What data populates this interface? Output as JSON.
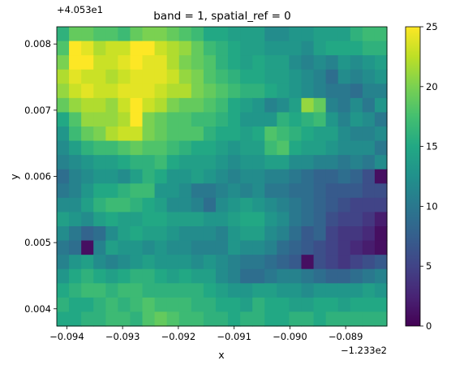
{
  "chart_data": {
    "type": "heatmap",
    "title": "band = 1, spatial_ref = 0",
    "xlabel": "x",
    "ylabel": "y",
    "x_offset_label": "−1.233e2",
    "y_offset_label": "+4.053e1",
    "xlim": [
      -0.09418,
      -0.08826
    ],
    "ylim": [
      0.00374,
      0.00826
    ],
    "x_ticks": [
      -0.094,
      -0.093,
      -0.092,
      -0.091,
      -0.09,
      -0.089
    ],
    "x_tick_labels": [
      "−0.094",
      "−0.093",
      "−0.092",
      "−0.091",
      "−0.090",
      "−0.089"
    ],
    "y_ticks": [
      0.004,
      0.005,
      0.006,
      0.007,
      0.008
    ],
    "y_tick_labels": [
      "0.004",
      "0.005",
      "0.006",
      "0.007",
      "0.008"
    ],
    "colorbar": {
      "min": 0,
      "max": 25,
      "ticks": [
        0,
        5,
        10,
        15,
        20,
        25
      ],
      "tick_labels": [
        "0",
        "5",
        "10",
        "15",
        "20",
        "25"
      ],
      "colormap": "viridis"
    },
    "grid": {
      "rows": 21,
      "cols": 27,
      "values": [
        [
          16,
          19,
          19,
          18,
          18,
          17,
          19,
          20,
          20,
          19,
          18,
          17,
          15,
          15,
          14,
          14,
          14,
          12,
          12,
          13,
          13,
          14,
          14,
          14,
          16,
          17,
          17
        ],
        [
          18,
          25,
          24,
          22,
          23,
          23,
          25,
          25,
          23,
          22,
          21,
          19,
          17,
          16,
          15,
          14,
          14,
          13,
          13,
          13,
          12,
          14,
          15,
          15,
          15,
          16,
          16
        ],
        [
          20,
          25,
          25,
          23,
          23,
          24,
          25,
          24,
          24,
          22,
          20,
          19,
          18,
          16,
          15,
          14,
          15,
          14,
          14,
          12,
          11,
          12,
          11,
          13,
          12,
          13,
          14
        ],
        [
          22,
          24,
          23,
          23,
          22,
          23,
          24,
          24,
          24,
          23,
          21,
          20,
          18,
          17,
          16,
          15,
          15,
          14,
          14,
          13,
          12,
          11,
          9,
          12,
          11,
          12,
          13
        ],
        [
          21,
          23,
          24,
          23,
          23,
          24,
          24,
          24,
          23,
          22,
          22,
          20,
          19,
          18,
          17,
          16,
          16,
          15,
          14,
          13,
          12,
          11,
          10,
          10,
          9,
          11,
          11
        ],
        [
          19,
          21,
          22,
          22,
          21,
          23,
          25,
          23,
          22,
          20,
          19,
          19,
          18,
          17,
          15,
          14,
          13,
          11,
          12,
          14,
          21,
          19,
          11,
          10,
          12,
          10,
          13
        ],
        [
          15,
          18,
          21,
          21,
          21,
          22,
          25,
          20,
          19,
          18,
          18,
          17,
          17,
          16,
          15,
          13,
          13,
          13,
          16,
          15,
          16,
          17,
          13,
          11,
          13,
          12,
          10
        ],
        [
          13,
          17,
          19,
          20,
          22,
          23,
          23,
          20,
          19,
          18,
          18,
          18,
          16,
          15,
          15,
          14,
          15,
          18,
          17,
          16,
          15,
          14,
          14,
          12,
          11,
          11,
          12
        ],
        [
          12,
          14,
          16,
          17,
          17,
          18,
          19,
          18,
          18,
          17,
          16,
          15,
          15,
          14,
          13,
          14,
          14,
          17,
          18,
          15,
          14,
          14,
          13,
          12,
          12,
          12,
          10
        ],
        [
          11,
          12,
          13,
          14,
          14,
          15,
          16,
          16,
          17,
          15,
          14,
          14,
          14,
          13,
          12,
          13,
          13,
          14,
          14,
          12,
          12,
          11,
          11,
          10,
          11,
          10,
          12
        ],
        [
          9,
          11,
          12,
          13,
          13,
          12,
          14,
          16,
          15,
          13,
          13,
          14,
          13,
          12,
          11,
          12,
          12,
          11,
          11,
          10,
          9,
          8,
          8,
          9,
          8,
          6,
          1
        ],
        [
          10,
          11,
          13,
          15,
          15,
          16,
          17,
          17,
          13,
          13,
          12,
          10,
          10,
          11,
          12,
          11,
          12,
          10,
          10,
          9,
          9,
          8,
          7,
          7,
          7,
          6,
          6
        ],
        [
          12,
          12,
          14,
          16,
          17,
          17,
          16,
          15,
          14,
          12,
          12,
          11,
          9,
          12,
          13,
          14,
          13,
          12,
          11,
          10,
          9,
          8,
          7,
          6,
          5,
          5,
          5
        ],
        [
          14,
          13,
          12,
          14,
          15,
          14,
          14,
          15,
          15,
          14,
          14,
          14,
          13,
          13,
          14,
          15,
          15,
          13,
          12,
          10,
          9,
          8,
          6,
          5,
          5,
          4,
          2
        ],
        [
          12,
          10,
          8,
          9,
          12,
          14,
          15,
          14,
          14,
          13,
          12,
          12,
          12,
          11,
          13,
          14,
          14,
          12,
          11,
          9,
          7,
          8,
          5,
          4,
          4,
          3,
          1
        ],
        [
          10,
          9,
          1,
          11,
          14,
          13,
          13,
          12,
          13,
          12,
          12,
          11,
          11,
          11,
          13,
          12,
          12,
          11,
          9,
          8,
          7,
          6,
          5,
          4,
          3,
          2,
          1
        ],
        [
          11,
          13,
          14,
          12,
          11,
          12,
          13,
          14,
          13,
          13,
          13,
          12,
          13,
          12,
          11,
          10,
          10,
          9,
          8,
          7,
          1,
          6,
          5,
          4,
          5,
          6,
          7
        ],
        [
          13,
          15,
          16,
          15,
          14,
          15,
          16,
          16,
          15,
          14,
          15,
          14,
          14,
          12,
          11,
          9,
          9,
          10,
          11,
          11,
          10,
          9,
          8,
          8,
          9,
          10,
          11
        ],
        [
          15,
          16,
          17,
          17,
          16,
          17,
          17,
          16,
          16,
          16,
          16,
          16,
          15,
          14,
          13,
          13,
          14,
          14,
          13,
          13,
          12,
          13,
          13,
          13,
          13,
          14,
          13
        ],
        [
          16,
          15,
          15,
          16,
          17,
          16,
          17,
          18,
          17,
          17,
          17,
          16,
          16,
          15,
          15,
          14,
          16,
          15,
          15,
          14,
          14,
          15,
          15,
          14,
          15,
          15,
          15
        ],
        [
          15,
          15,
          16,
          16,
          17,
          17,
          16,
          18,
          19,
          18,
          17,
          17,
          16,
          16,
          15,
          16,
          16,
          15,
          15,
          16,
          16,
          15,
          16,
          16,
          16,
          16,
          16
        ]
      ]
    }
  }
}
